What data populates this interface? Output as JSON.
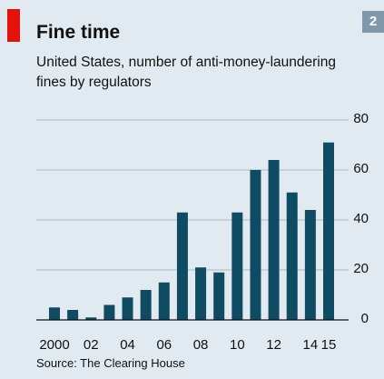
{
  "chart_data": {
    "type": "bar",
    "title": "Fine time",
    "badge": "2",
    "subtitle": "United States, number of anti-money-laundering fines by regulators",
    "source": "Source: The Clearing House",
    "categories": [
      "2000",
      null,
      "02",
      null,
      "04",
      null,
      "06",
      null,
      "08",
      null,
      "10",
      null,
      "12",
      null,
      "14",
      "15"
    ],
    "values": [
      5,
      4,
      1,
      6,
      9,
      12,
      15,
      43,
      21,
      19,
      43,
      60,
      64,
      51,
      44,
      71
    ],
    "color": "#0f4c63",
    "ylim": [
      0,
      80
    ],
    "yticks": [
      0,
      20,
      40,
      60,
      80
    ],
    "grid": true
  }
}
